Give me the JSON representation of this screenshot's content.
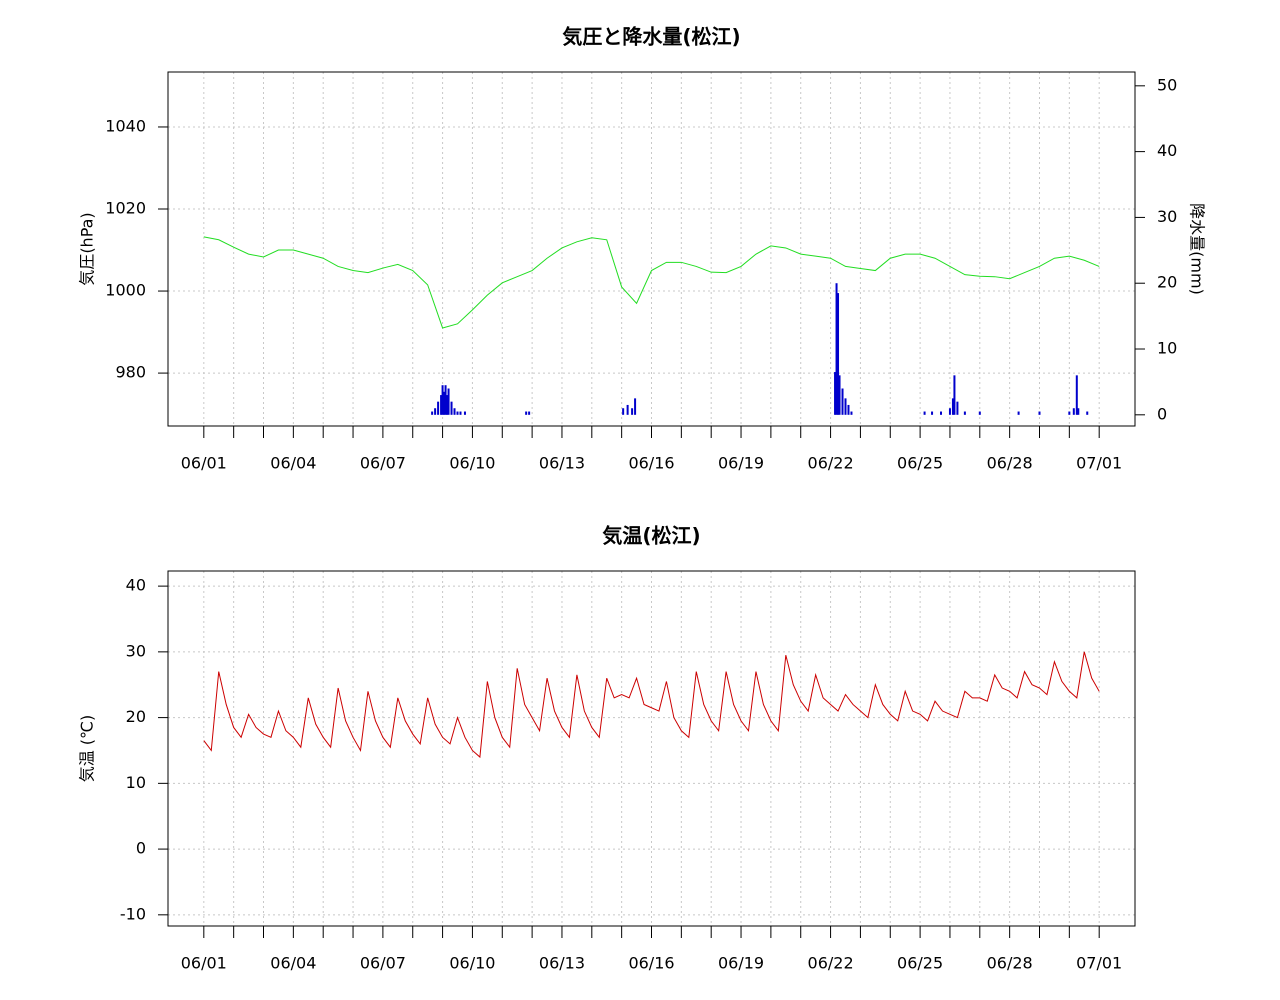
{
  "chart_data": [
    {
      "type": "line",
      "title": "気圧と降水量(松江)",
      "ylabel": "気圧(hPa)",
      "y2label": "降水量(mm)",
      "grid": true,
      "xlim": [
        -1.2,
        31.2
      ],
      "xticks": [
        {
          "value": 0,
          "label": "06/01"
        },
        {
          "value": 3,
          "label": "06/04"
        },
        {
          "value": 6,
          "label": "06/07"
        },
        {
          "value": 9,
          "label": "06/10"
        },
        {
          "value": 12,
          "label": "06/13"
        },
        {
          "value": 15,
          "label": "06/16"
        },
        {
          "value": 18,
          "label": "06/19"
        },
        {
          "value": 21,
          "label": "06/22"
        },
        {
          "value": 24,
          "label": "06/25"
        },
        {
          "value": 27,
          "label": "06/28"
        },
        {
          "value": 30,
          "label": "07/01"
        }
      ],
      "xminor_ticks": [
        1,
        2,
        4,
        5,
        7,
        8,
        10,
        11,
        13,
        14,
        16,
        17,
        19,
        20,
        22,
        23,
        25,
        26,
        28,
        29
      ],
      "ylim": [
        967.1,
        1053.4
      ],
      "yticks": [
        980,
        1000,
        1020,
        1040
      ],
      "y2lim": [
        -1.7,
        52.1
      ],
      "y2ticks": [
        0,
        10,
        20,
        30,
        40,
        50
      ],
      "series": [
        {
          "type": "line",
          "color": "#22dd22",
          "x": [
            0,
            0.5,
            1,
            1.5,
            2,
            2.5,
            3,
            3.5,
            4,
            4.5,
            5,
            5.5,
            6,
            6.5,
            7,
            7.5,
            8,
            8.5,
            9,
            9.5,
            10,
            10.5,
            11,
            11.5,
            12,
            12.5,
            13,
            13.5,
            14,
            14.5,
            15,
            15.5,
            16,
            16.5,
            17,
            17.5,
            18,
            18.5,
            19,
            19.5,
            20,
            20.5,
            21,
            21.5,
            22,
            22.5,
            23,
            23.5,
            24,
            24.5,
            25,
            25.5,
            26,
            26.5,
            27,
            27.5,
            28,
            28.5,
            29,
            29.5,
            30
          ],
          "values": [
            1013.2,
            1012.5,
            1010.7,
            1009,
            1008.3,
            1010,
            1010,
            1009,
            1008,
            1006,
            1005,
            1004.5,
            1005.6,
            1006.5,
            1005,
            1001.5,
            991,
            992,
            995.4,
            999,
            1002,
            1003.5,
            1005,
            1008,
            1010.5,
            1012,
            1013,
            1012.5,
            1001,
            997,
            1005,
            1007,
            1007,
            1006,
            1004.6,
            1004.5,
            1006,
            1009,
            1011,
            1010.5,
            1009,
            1008.5,
            1008,
            1006,
            1005.5,
            1005,
            1008,
            1009,
            1009,
            1008,
            1006,
            1004,
            1003.6,
            1003.5,
            1003,
            1004.5,
            1006,
            1008,
            1008.5,
            1007.5,
            1006
          ]
        },
        {
          "type": "bar",
          "axis": "y2",
          "color": "#0000cc",
          "x": [
            7.65,
            7.75,
            7.85,
            7.95,
            8.0,
            8.05,
            8.1,
            8.15,
            8.2,
            8.3,
            8.4,
            8.5,
            8.6,
            8.75,
            10.8,
            10.9,
            14.05,
            14.2,
            14.35,
            14.45,
            21.15,
            21.2,
            21.25,
            21.3,
            21.4,
            21.5,
            21.6,
            21.7,
            24.15,
            24.4,
            24.7,
            25.0,
            25.1,
            25.15,
            25.25,
            25.5,
            26.0,
            27.3,
            28.0,
            29.0,
            29.15,
            29.25,
            29.3,
            29.6
          ],
          "values": [
            0.5,
            1,
            2,
            3,
            4.5,
            3.5,
            4.5,
            3,
            4,
            2,
            1,
            0.5,
            0.5,
            0.5,
            0.5,
            0.5,
            1,
            1.5,
            1,
            2.5,
            6.5,
            20,
            18.5,
            6,
            4,
            2.5,
            1.5,
            0.5,
            0.5,
            0.5,
            0.5,
            1,
            2.5,
            6,
            2,
            0.5,
            0.5,
            0.5,
            0.5,
            0.5,
            1,
            6,
            1,
            0.5
          ]
        }
      ]
    },
    {
      "type": "line",
      "title": "気温(松江)",
      "ylabel": "気温 (℃)",
      "grid": true,
      "xlim": [
        -1.2,
        31.2
      ],
      "xticks": [
        {
          "value": 0,
          "label": "06/01"
        },
        {
          "value": 3,
          "label": "06/04"
        },
        {
          "value": 6,
          "label": "06/07"
        },
        {
          "value": 9,
          "label": "06/10"
        },
        {
          "value": 12,
          "label": "06/13"
        },
        {
          "value": 15,
          "label": "06/16"
        },
        {
          "value": 18,
          "label": "06/19"
        },
        {
          "value": 21,
          "label": "06/22"
        },
        {
          "value": 24,
          "label": "06/25"
        },
        {
          "value": 27,
          "label": "06/28"
        },
        {
          "value": 30,
          "label": "07/01"
        }
      ],
      "xminor_ticks": [
        1,
        2,
        4,
        5,
        7,
        8,
        10,
        11,
        13,
        14,
        16,
        17,
        19,
        20,
        22,
        23,
        25,
        26,
        28,
        29
      ],
      "ylim": [
        -11.7,
        42.3
      ],
      "yticks": [
        -10,
        0,
        10,
        20,
        30,
        40
      ],
      "series": [
        {
          "type": "line",
          "color": "#cc0000",
          "x": [
            0,
            0.25,
            0.5,
            0.75,
            1,
            1.25,
            1.5,
            1.75,
            2,
            2.25,
            2.5,
            2.75,
            3,
            3.25,
            3.5,
            3.75,
            4,
            4.25,
            4.5,
            4.75,
            5,
            5.25,
            5.5,
            5.75,
            6,
            6.25,
            6.5,
            6.75,
            7,
            7.25,
            7.5,
            7.75,
            8,
            8.25,
            8.5,
            8.75,
            9,
            9.25,
            9.5,
            9.75,
            10,
            10.25,
            10.5,
            10.75,
            11,
            11.25,
            11.5,
            11.75,
            12,
            12.25,
            12.5,
            12.75,
            13,
            13.25,
            13.5,
            13.75,
            14,
            14.25,
            14.5,
            14.75,
            15,
            15.25,
            15.5,
            15.75,
            16,
            16.25,
            16.5,
            16.75,
            17,
            17.25,
            17.5,
            17.75,
            18,
            18.25,
            18.5,
            18.75,
            19,
            19.25,
            19.5,
            19.75,
            20,
            20.25,
            20.5,
            20.75,
            21,
            21.25,
            21.5,
            21.75,
            22,
            22.25,
            22.5,
            22.75,
            23,
            23.25,
            23.5,
            23.75,
            24,
            24.25,
            24.5,
            24.75,
            25,
            25.25,
            25.5,
            25.75,
            26,
            26.25,
            26.5,
            26.75,
            27,
            27.25,
            27.5,
            27.75,
            28,
            28.25,
            28.5,
            28.75,
            29,
            29.25,
            29.5,
            29.75,
            30
          ],
          "values": [
            16.5,
            15,
            27,
            22,
            18.5,
            17,
            20.5,
            18.5,
            17.5,
            17,
            21,
            18,
            17,
            15.5,
            23,
            19,
            17,
            15.5,
            24.5,
            19.5,
            17,
            15,
            24,
            19.5,
            17,
            15.5,
            23,
            19.5,
            17.5,
            16,
            23,
            19,
            17,
            16,
            20,
            17,
            15,
            14,
            25.5,
            20,
            17,
            15.5,
            27.5,
            22,
            20,
            18,
            26,
            21,
            18.5,
            17,
            26.5,
            21,
            18.5,
            17,
            26,
            23,
            23.5,
            23,
            26,
            22,
            21.5,
            21,
            25.5,
            20,
            18,
            17,
            27,
            22,
            19.5,
            18,
            27,
            22,
            19.5,
            18,
            27,
            22,
            19.5,
            18,
            29.5,
            25,
            22.5,
            21,
            26.5,
            23,
            22,
            21,
            23.5,
            22,
            21,
            20,
            25,
            22,
            20.5,
            19.5,
            24,
            21,
            20.5,
            19.5,
            22.5,
            21,
            20.5,
            20,
            24,
            23,
            23,
            22.5,
            26.5,
            24.5,
            24,
            23,
            27,
            25,
            24.5,
            23.5,
            28.5,
            25.5,
            24,
            23,
            30,
            26,
            24
          ]
        }
      ]
    }
  ]
}
